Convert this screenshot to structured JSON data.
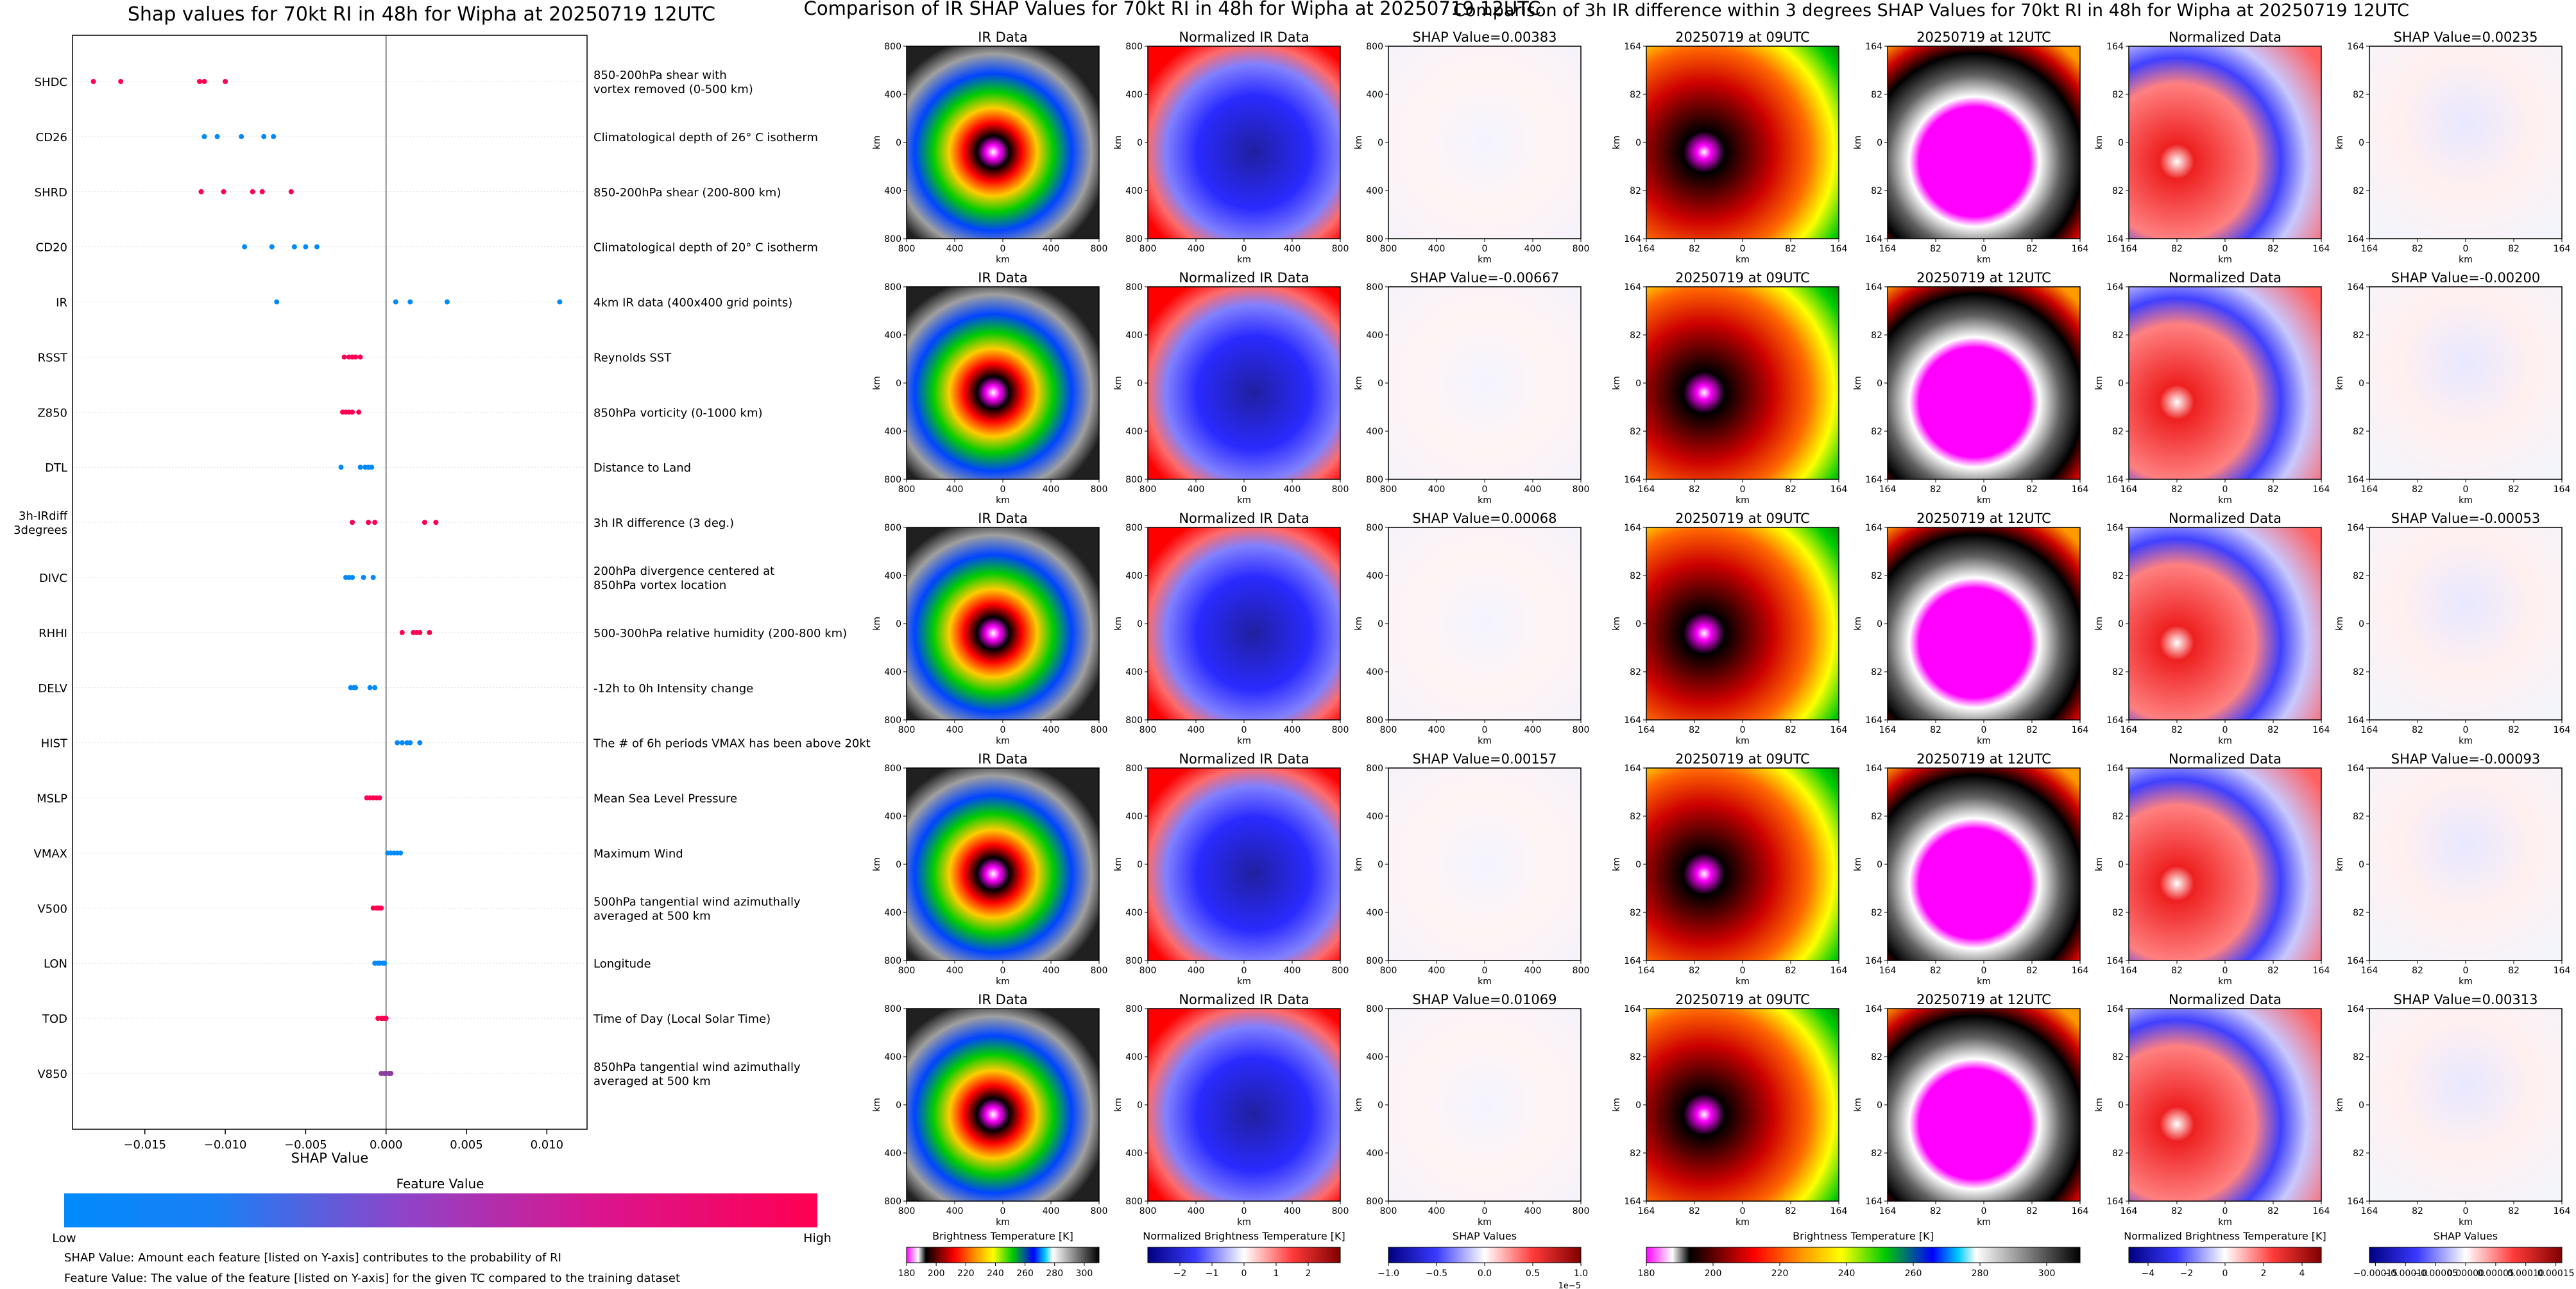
{
  "chart_data": [
    {
      "type": "scatter",
      "title": "Shap values for 70kt RI in 48h for Wipha at 20250719 12UTC",
      "xlabel": "SHAP Value",
      "xlim": [
        -0.0195,
        0.0125
      ],
      "xticks": [
        -0.015,
        -0.01,
        -0.005,
        0.0,
        0.005,
        0.01
      ],
      "xtick_labels": [
        "−0.015",
        "−0.010",
        "−0.005",
        "0.000",
        "0.005",
        "0.010"
      ],
      "colorbar": {
        "title": "Feature Value",
        "low_label": "Low",
        "high_label": "High",
        "low_color": "#008afb",
        "high_color": "#ff0051"
      },
      "notes": [
        "SHAP Value: Amount each feature [listed on Y-axis] contributes to the probability of RI",
        "Feature Value: The value of the feature [listed on Y-axis] for the given TC compared to the training dataset"
      ],
      "features": [
        {
          "name": "SHDC",
          "description": [
            "850-200hPa shear with",
            "vortex removed (0-500 km)"
          ],
          "points": [
            [
              -0.0182,
              1
            ],
            [
              -0.0165,
              1
            ],
            [
              -0.0116,
              1
            ],
            [
              -0.0113,
              1
            ],
            [
              -0.01,
              1
            ]
          ]
        },
        {
          "name": "CD26",
          "description": [
            "Climatological depth of 26° C isotherm"
          ],
          "points": [
            [
              -0.0113,
              0
            ],
            [
              -0.0105,
              0
            ],
            [
              -0.009,
              0
            ],
            [
              -0.0076,
              0
            ],
            [
              -0.007,
              0
            ]
          ]
        },
        {
          "name": "SHRD",
          "description": [
            "850-200hPa shear (200-800 km)"
          ],
          "points": [
            [
              -0.0115,
              1
            ],
            [
              -0.0101,
              1
            ],
            [
              -0.0083,
              1
            ],
            [
              -0.0077,
              1
            ],
            [
              -0.0059,
              1
            ]
          ]
        },
        {
          "name": "CD20",
          "description": [
            "Climatological depth of 20° C isotherm"
          ],
          "points": [
            [
              -0.0088,
              0
            ],
            [
              -0.0071,
              0
            ],
            [
              -0.0057,
              0
            ],
            [
              -0.005,
              0
            ],
            [
              -0.0043,
              0
            ]
          ]
        },
        {
          "name": "IR",
          "description": [
            "4km IR data (400x400 grid points)"
          ],
          "points": [
            [
              -0.0068,
              0
            ],
            [
              0.0006,
              0
            ],
            [
              0.0015,
              0
            ],
            [
              0.0038,
              0
            ],
            [
              0.0108,
              0
            ]
          ]
        },
        {
          "name": "RSST",
          "description": [
            "Reynolds SST"
          ],
          "points": [
            [
              -0.0026,
              1
            ],
            [
              -0.0023,
              1
            ],
            [
              -0.0021,
              1
            ],
            [
              -0.0019,
              1
            ],
            [
              -0.0016,
              1
            ]
          ]
        },
        {
          "name": "Z850",
          "description": [
            "850hPa vorticity (0-1000 km)"
          ],
          "points": [
            [
              -0.0027,
              1
            ],
            [
              -0.0025,
              1
            ],
            [
              -0.0023,
              1
            ],
            [
              -0.0021,
              1
            ],
            [
              -0.0017,
              1
            ]
          ]
        },
        {
          "name": "DTL",
          "description": [
            "Distance to Land"
          ],
          "points": [
            [
              -0.0028,
              0
            ],
            [
              -0.0016,
              0
            ],
            [
              -0.0013,
              0
            ],
            [
              -0.0011,
              0
            ],
            [
              -0.0009,
              0
            ]
          ]
        },
        {
          "name": "3h-IRdiff\n3degrees",
          "description": [
            "3h IR difference (3 deg.)"
          ],
          "points": [
            [
              -0.0021,
              1
            ],
            [
              -0.0011,
              1
            ],
            [
              -0.0007,
              1
            ],
            [
              0.0024,
              1
            ],
            [
              0.0031,
              1
            ]
          ]
        },
        {
          "name": "DIVC",
          "description": [
            "200hPa divergence centered at",
            "850hPa vortex location"
          ],
          "points": [
            [
              -0.0025,
              0
            ],
            [
              -0.0023,
              0
            ],
            [
              -0.0021,
              0
            ],
            [
              -0.0014,
              0
            ],
            [
              -0.0008,
              0
            ]
          ]
        },
        {
          "name": "RHHI",
          "description": [
            "500-300hPa relative humidity (200-800 km)"
          ],
          "points": [
            [
              0.001,
              1
            ],
            [
              0.0017,
              1
            ],
            [
              0.0019,
              1
            ],
            [
              0.0021,
              1
            ],
            [
              0.0027,
              1
            ]
          ]
        },
        {
          "name": "DELV",
          "description": [
            "-12h to 0h Intensity change"
          ],
          "points": [
            [
              -0.0022,
              0
            ],
            [
              -0.002,
              0
            ],
            [
              -0.0019,
              0
            ],
            [
              -0.001,
              0
            ],
            [
              -0.0007,
              0
            ]
          ]
        },
        {
          "name": "HIST",
          "description": [
            "The # of 6h periods VMAX has been above 20kt"
          ],
          "points": [
            [
              0.0007,
              0
            ],
            [
              0.001,
              0
            ],
            [
              0.0013,
              0
            ],
            [
              0.0015,
              0
            ],
            [
              0.0021,
              0
            ]
          ]
        },
        {
          "name": "MSLP",
          "description": [
            "Mean Sea Level Pressure"
          ],
          "points": [
            [
              -0.0012,
              1
            ],
            [
              -0.001,
              1
            ],
            [
              -0.0008,
              1
            ],
            [
              -0.0006,
              1
            ],
            [
              -0.0004,
              1
            ]
          ]
        },
        {
          "name": "VMAX",
          "description": [
            "Maximum Wind"
          ],
          "points": [
            [
              0.0001,
              0
            ],
            [
              0.0003,
              0
            ],
            [
              0.0005,
              0
            ],
            [
              0.0007,
              0
            ],
            [
              0.0009,
              0
            ]
          ]
        },
        {
          "name": "V500",
          "description": [
            "500hPa tangential wind azimuthally",
            "averaged at 500 km"
          ],
          "points": [
            [
              -0.0008,
              1
            ],
            [
              -0.0006,
              1
            ],
            [
              -0.0005,
              1
            ],
            [
              -0.0004,
              1
            ],
            [
              -0.0003,
              1
            ]
          ]
        },
        {
          "name": "LON",
          "description": [
            "Longitude"
          ],
          "points": [
            [
              -0.0007,
              0
            ],
            [
              -0.0005,
              0
            ],
            [
              -0.0004,
              0
            ],
            [
              -0.0002,
              0
            ],
            [
              -0.0001,
              0
            ]
          ]
        },
        {
          "name": "TOD",
          "description": [
            "Time of Day (Local Solar Time)"
          ],
          "points": [
            [
              -0.0005,
              1
            ],
            [
              -0.0003,
              1
            ],
            [
              -0.0002,
              1
            ],
            [
              -0.0001,
              1
            ],
            [
              0.0,
              1
            ]
          ]
        },
        {
          "name": "V850",
          "description": [
            "850hPa tangential wind azimuthally",
            "averaged at 500 km"
          ],
          "points": [
            [
              -0.0003,
              0.55
            ],
            [
              -0.0001,
              0.55
            ],
            [
              0.0,
              0.55
            ],
            [
              0.0002,
              0.55
            ],
            [
              0.0003,
              0.55
            ]
          ]
        }
      ]
    },
    {
      "type": "heatmap",
      "title": "Comparison of IR SHAP Values for 70kt RI in 48h for Wipha at 20250719 12UTC",
      "columns": [
        "IR Data",
        "Normalized IR Data",
        "SHAP Value"
      ],
      "xlabel": "km",
      "ylabel": "km",
      "tick_labels": [
        "800",
        "400",
        "0",
        "400",
        "800"
      ],
      "shap_values": [
        "0.00383",
        "-0.00667",
        "0.00068",
        "0.00157",
        "0.01069"
      ],
      "shap_prefix": "SHAP Value=",
      "colorbars": [
        {
          "label": "Brightness Temperature [K]",
          "range": [
            180,
            310
          ],
          "ticks": [
            "180",
            "200",
            "220",
            "240",
            "260",
            "280",
            "300"
          ]
        },
        {
          "label": "Normalized Brightness Temperature [K]",
          "range": [
            -3,
            3
          ],
          "ticks": [
            "−2",
            "−1",
            "0",
            "1",
            "2"
          ]
        },
        {
          "label": "SHAP Values",
          "range": [
            -1,
            1
          ],
          "ticks": [
            "−1.0",
            "−0.5",
            "0.0",
            "0.5",
            "1.0"
          ],
          "offset": "1e−5"
        }
      ]
    },
    {
      "type": "heatmap",
      "title": "Comparison of 3h IR difference within 3 degrees SHAP Values for 70kt RI in 48h for Wipha at 20250719 12UTC",
      "columns": [
        "20250719 at 09UTC",
        "20250719 at 12UTC",
        "Normalized Data",
        "SHAP Value"
      ],
      "xlabel": "km",
      "ylabel": "km",
      "tick_labels": [
        "164",
        "82",
        "0",
        "82",
        "164"
      ],
      "shap_values": [
        "0.00235",
        "-0.00200",
        "-0.00053",
        "-0.00093",
        "0.00313"
      ],
      "shap_prefix": "SHAP Value=",
      "colorbars": [
        {
          "label": "Brightness Temperature [K]",
          "range": [
            180,
            310
          ],
          "ticks": [
            "180",
            "200",
            "220",
            "240",
            "260",
            "280",
            "300"
          ]
        },
        {
          "label": "Normalized Brightness Temperature [K]",
          "range": [
            -5,
            5
          ],
          "ticks": [
            "−4",
            "−2",
            "0",
            "2",
            "4"
          ]
        },
        {
          "label": "SHAP Values",
          "range": [
            -0.00016,
            0.00016
          ],
          "ticks": [
            "−0.00015",
            "−0.00010",
            "−0.00005",
            "0.00000",
            "0.00005",
            "0.00010",
            "0.00015"
          ]
        }
      ]
    }
  ]
}
